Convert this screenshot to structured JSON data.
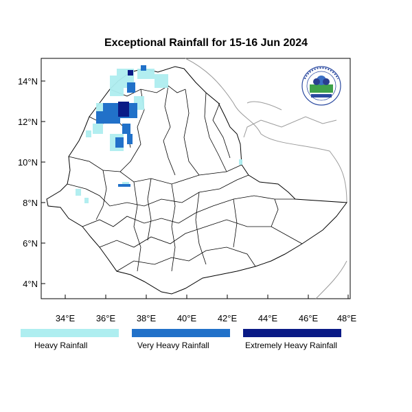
{
  "title": "Exceptional Rainfall for 15-16 Jun 2024",
  "axes": {
    "x_ticks": [
      "34°E",
      "36°E",
      "38°E",
      "40°E",
      "42°E",
      "44°E",
      "46°E",
      "48°E"
    ],
    "y_ticks": [
      "4°N",
      "6°N",
      "8°N",
      "10°N",
      "12°N",
      "14°N"
    ]
  },
  "legend": [
    {
      "label": "Heavy Rainfall",
      "color": "#aeeef0"
    },
    {
      "label": "Very Heavy Rainfall",
      "color": "#2171c9"
    },
    {
      "label": "Extremely Heavy Rainfall",
      "color": "#0a1a86"
    }
  ],
  "logo": {
    "name": "ethiopian-meteorology-institute-logo",
    "text": "Ethiopian Meteorology Institute"
  }
}
